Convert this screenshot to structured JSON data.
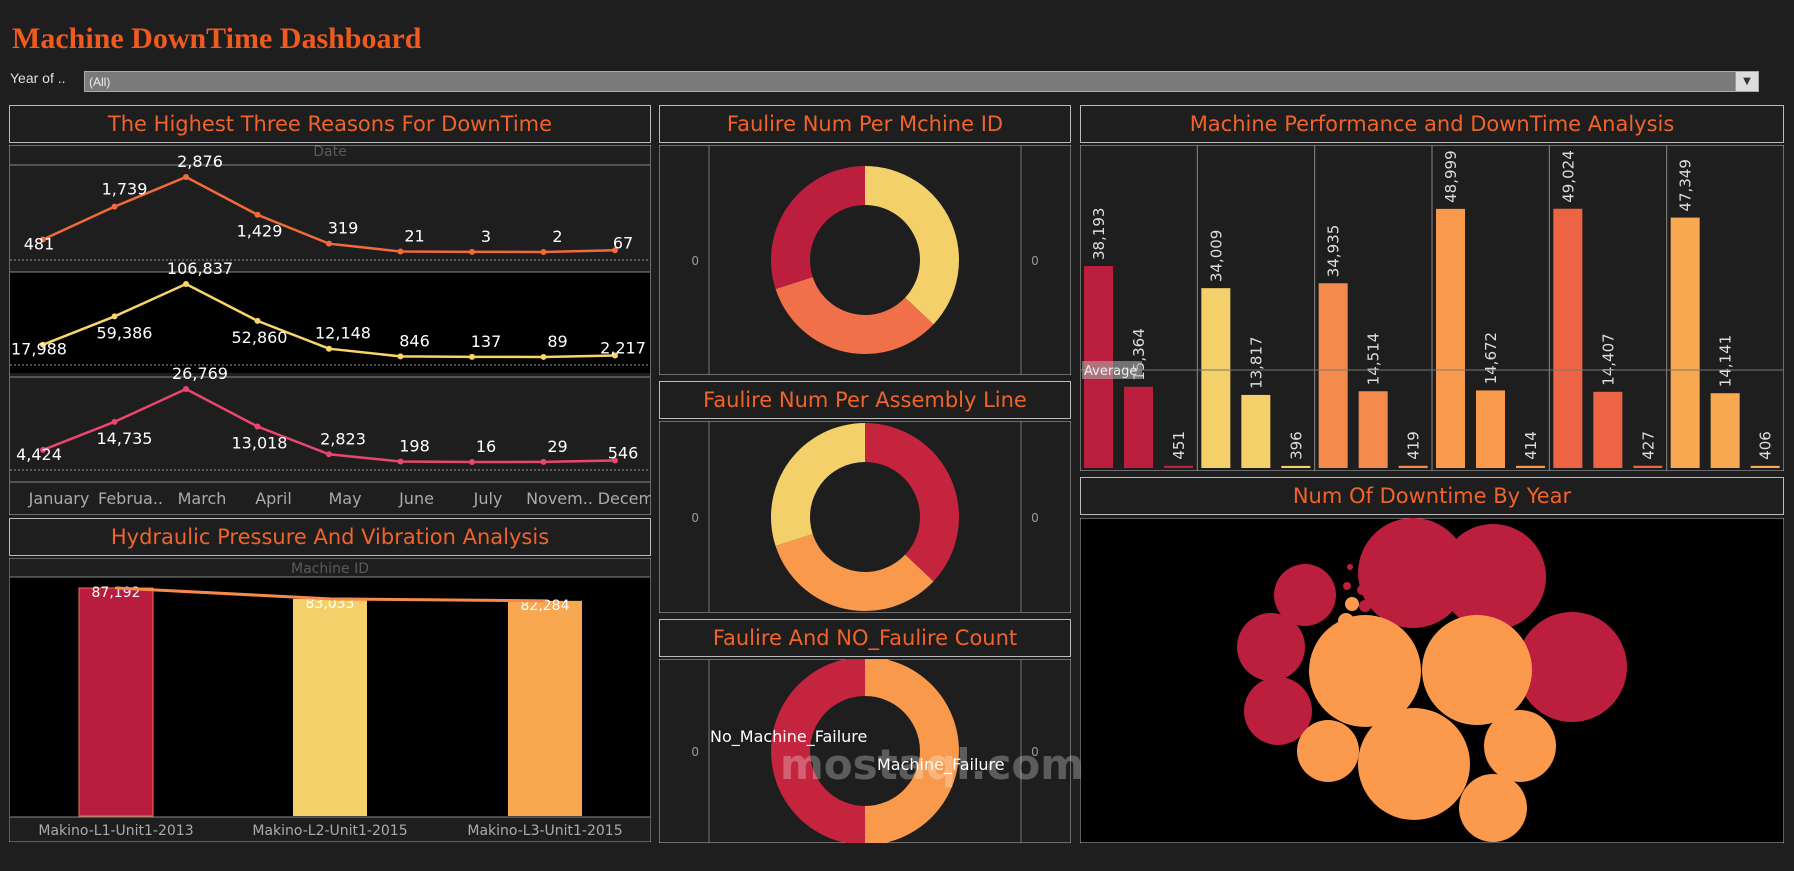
{
  "header": {
    "title": "Machine DownTime Dashboard"
  },
  "filter": {
    "label": "Year of ..",
    "value": "(All)"
  },
  "panels": {
    "reasons": "The Highest Three Reasons For DownTime",
    "failure_machine": "Faulire Num Per Mchine ID",
    "performance": "Machine Performance and DownTime Analysis",
    "failure_line": "Faulire Num Per Assembly Line",
    "hydraulic": "Hydraulic Pressure And Vibration Analysis",
    "failure_count": "Faulire And NO_Faulire Count",
    "downtime_year": "Num Of Downtime By Year"
  },
  "watermark": "mostaql.com",
  "chart_data": [
    {
      "type": "line",
      "xlabel": "Date",
      "categories": [
        "January",
        "Februa..",
        "March",
        "April",
        "May",
        "June",
        "July",
        "Novem..",
        "Decem.."
      ],
      "series": [
        {
          "values": [
            481,
            1739,
            2876,
            1429,
            319,
            21,
            3,
            2,
            67
          ],
          "color": "#f06a3a"
        },
        {
          "values": [
            17988,
            59386,
            106837,
            52860,
            12148,
            846,
            137,
            89,
            2217
          ],
          "color": "#f8d56a"
        },
        {
          "values": [
            4424,
            14735,
            26769,
            13018,
            2823,
            198,
            16,
            29,
            546
          ],
          "color": "#e8466e"
        }
      ],
      "labels": [
        [
          "481",
          "1,739",
          "2,876",
          "1,429",
          "319",
          "21",
          "3",
          "2",
          "67"
        ],
        [
          "17,988",
          "59,386",
          "106,837",
          "52,860",
          "12,148",
          "846",
          "137",
          "89",
          "2,217"
        ],
        [
          "4,424",
          "14,735",
          "26,769",
          "13,018",
          "2,823",
          "198",
          "16",
          "29",
          "546"
        ]
      ]
    },
    {
      "type": "bar",
      "xlabel": "Machine ID",
      "categories": [
        "Makino-L1-Unit1-2013",
        "Makino-L2-Unit1-2015",
        "Makino-L3-Unit1-2015"
      ],
      "values": [
        87192,
        83033,
        82284
      ],
      "labels": [
        "87,192",
        "83,033",
        "82,284"
      ],
      "colors": [
        "#b81c3e",
        "#f4d06a",
        "#f8a850"
      ]
    },
    {
      "type": "pie",
      "values": [
        0.37,
        0.33,
        0.3
      ],
      "colors": [
        "#f4d06a",
        "#f0704a",
        "#bc1e3e"
      ],
      "axis_tick": "0"
    },
    {
      "type": "pie",
      "values": [
        0.37,
        0.33,
        0.3
      ],
      "colors": [
        "#c4243e",
        "#f8994c",
        "#f4d06a"
      ],
      "axis_tick": "0"
    },
    {
      "type": "pie",
      "values": [
        0.5,
        0.5
      ],
      "labels": [
        "No_Machine_Failure",
        "Machine_Failure"
      ],
      "colors": [
        "#f8994c",
        "#c4243e"
      ],
      "axis_tick": "0"
    },
    {
      "type": "bar",
      "reference_line": "Average",
      "ylim": [
        0,
        52000
      ],
      "groups": [
        {
          "values": [
            38193,
            15364,
            451
          ],
          "labels": [
            "38,193",
            "15,364",
            "451"
          ],
          "color": "#bc1e3e"
        },
        {
          "values": [
            34009,
            13817,
            396
          ],
          "labels": [
            "34,009",
            "13,817",
            "396"
          ],
          "color": "#f4d06a"
        },
        {
          "values": [
            34935,
            14514,
            419
          ],
          "labels": [
            "34,935",
            "14,514",
            "419"
          ],
          "color": "#f48a4c"
        },
        {
          "values": [
            48999,
            14672,
            414
          ],
          "labels": [
            "48,999",
            "14,672",
            "414"
          ],
          "color": "#f8994c"
        },
        {
          "values": [
            49024,
            14407,
            427
          ],
          "labels": [
            "49,024",
            "14,407",
            "427"
          ],
          "color": "#ec6444"
        },
        {
          "values": [
            47349,
            14141,
            406
          ],
          "labels": [
            "47,349",
            "14,141",
            "406"
          ],
          "color": "#f8a850"
        }
      ]
    },
    {
      "type": "bubble",
      "colors": [
        "#bc1e3e",
        "#fb9a4c"
      ]
    }
  ]
}
